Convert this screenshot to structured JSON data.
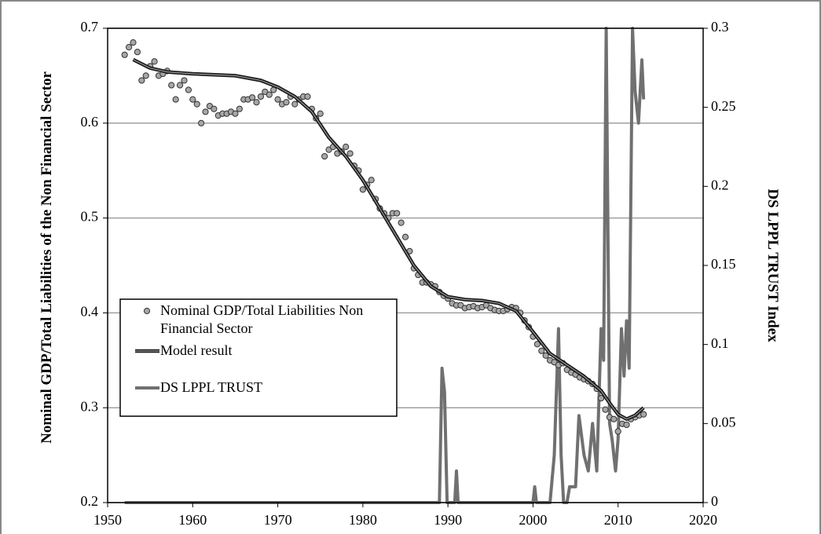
{
  "chart_data": {
    "type": "line",
    "xlim": [
      1950,
      2020
    ],
    "xticks": [
      1950,
      1960,
      1970,
      1980,
      1990,
      2000,
      2010,
      2020
    ],
    "ylim": [
      0.2,
      0.7
    ],
    "yticks": [
      0.2,
      0.3,
      0.4,
      0.5,
      0.6,
      0.7
    ],
    "y2lim": [
      0,
      0.3
    ],
    "y2ticks": [
      0,
      0.05,
      0.1,
      0.15,
      0.2,
      0.25,
      0.3
    ],
    "ylabel": "Nominal GDP/Total Liabilities of the Non Financial Sector",
    "y2label": "DS LPPL TRUST Index",
    "grid": true,
    "legend": "lower left",
    "series": [
      {
        "name": "Nominal GDP/Total Liabilities Non Financial Sector",
        "kind": "scatter",
        "color": "#a6a6a6",
        "x": [
          1952,
          1952.5,
          1953,
          1953.5,
          1954,
          1954.5,
          1955,
          1955.5,
          1956,
          1956.5,
          1957,
          1957.5,
          1958,
          1958.5,
          1959,
          1959.5,
          1960,
          1960.5,
          1961,
          1961.5,
          1962,
          1962.5,
          1963,
          1963.5,
          1964,
          1964.5,
          1965,
          1965.5,
          1966,
          1966.5,
          1967,
          1967.5,
          1968,
          1968.5,
          1969,
          1969.5,
          1970,
          1970.5,
          1971,
          1971.5,
          1972,
          1972.5,
          1973,
          1973.5,
          1974,
          1974.5,
          1975,
          1975.5,
          1976,
          1976.5,
          1977,
          1977.5,
          1978,
          1978.5,
          1979,
          1979.5,
          1980,
          1980.5,
          1981,
          1981.5,
          1982,
          1982.5,
          1983,
          1983.5,
          1984,
          1984.5,
          1985,
          1985.5,
          1986,
          1986.5,
          1987,
          1987.5,
          1988,
          1988.5,
          1989,
          1989.5,
          1990,
          1990.5,
          1991,
          1991.5,
          1992,
          1992.5,
          1993,
          1993.5,
          1994,
          1994.5,
          1995,
          1995.5,
          1996,
          1996.5,
          1997,
          1997.5,
          1998,
          1998.5,
          1999,
          1999.5,
          2000,
          2000.5,
          2001,
          2001.5,
          2002,
          2002.5,
          2003,
          2003.5,
          2004,
          2004.5,
          2005,
          2005.5,
          2006,
          2006.5,
          2007,
          2007.5,
          2008,
          2008.5,
          2009,
          2009.5,
          2010,
          2010.5,
          2011,
          2011.5,
          2012,
          2012.5,
          2013
        ],
        "values": [
          0.672,
          0.68,
          0.685,
          0.675,
          0.645,
          0.65,
          0.66,
          0.665,
          0.65,
          0.652,
          0.655,
          0.64,
          0.625,
          0.64,
          0.645,
          0.635,
          0.625,
          0.62,
          0.6,
          0.612,
          0.618,
          0.615,
          0.608,
          0.61,
          0.61,
          0.612,
          0.61,
          0.615,
          0.625,
          0.625,
          0.627,
          0.622,
          0.628,
          0.633,
          0.63,
          0.635,
          0.625,
          0.62,
          0.622,
          0.628,
          0.62,
          0.625,
          0.628,
          0.628,
          0.615,
          0.605,
          0.61,
          0.565,
          0.572,
          0.575,
          0.568,
          0.57,
          0.575,
          0.568,
          0.555,
          0.55,
          0.53,
          0.535,
          0.54,
          0.52,
          0.51,
          0.505,
          0.5,
          0.505,
          0.505,
          0.495,
          0.48,
          0.465,
          0.447,
          0.44,
          0.432,
          0.432,
          0.43,
          0.428,
          0.422,
          0.418,
          0.415,
          0.41,
          0.408,
          0.408,
          0.405,
          0.406,
          0.407,
          0.405,
          0.406,
          0.408,
          0.405,
          0.403,
          0.402,
          0.402,
          0.404,
          0.406,
          0.405,
          0.4,
          0.392,
          0.385,
          0.375,
          0.367,
          0.36,
          0.355,
          0.35,
          0.348,
          0.345,
          0.347,
          0.34,
          0.337,
          0.335,
          0.332,
          0.33,
          0.328,
          0.325,
          0.32,
          0.31,
          0.298,
          0.29,
          0.288,
          0.275,
          0.283,
          0.282,
          0.288,
          0.29,
          0.292,
          0.293
        ]
      },
      {
        "name": "Model result",
        "kind": "line",
        "color": "#1a1a1a",
        "x": [
          1953,
          1955,
          1957,
          1960,
          1965,
          1968,
          1970,
          1972,
          1974,
          1976,
          1978,
          1980,
          1982,
          1984,
          1986,
          1988,
          1990,
          1992,
          1994,
          1996,
          1998,
          2000,
          2002,
          2004,
          2006,
          2008,
          2009,
          2010,
          2011,
          2012,
          2013
        ],
        "values": [
          0.667,
          0.658,
          0.654,
          0.652,
          0.65,
          0.645,
          0.638,
          0.628,
          0.612,
          0.585,
          0.565,
          0.54,
          0.51,
          0.48,
          0.45,
          0.428,
          0.417,
          0.414,
          0.413,
          0.41,
          0.402,
          0.38,
          0.357,
          0.345,
          0.333,
          0.318,
          0.305,
          0.293,
          0.288,
          0.292,
          0.3
        ]
      },
      {
        "name": "DS LPPL TRUST",
        "kind": "line",
        "color": "#707070",
        "axis": "y2",
        "x": [
          1952,
          1989,
          1989.3,
          1989.6,
          1989.9,
          1990.8,
          1991,
          1991.2,
          2000,
          2000.2,
          2000.4,
          2002,
          2002.5,
          2003,
          2003.3,
          2003.6,
          2004,
          2004.3,
          2005,
          2005.4,
          2006,
          2006.5,
          2007,
          2007.5,
          2008,
          2008.3,
          2008.6,
          2009,
          2009.3,
          2009.7,
          2010,
          2010.4,
          2010.7,
          2011,
          2011.3,
          2011.7,
          2012,
          2012.4,
          2012.8,
          2013
        ],
        "values": [
          0,
          0,
          0.085,
          0.07,
          0,
          0,
          0.02,
          0,
          0,
          0.01,
          0,
          0,
          0.03,
          0.11,
          0.03,
          0,
          0,
          0.01,
          0.01,
          0.055,
          0.03,
          0.02,
          0.05,
          0.02,
          0.11,
          0.09,
          0.3,
          0.05,
          0.04,
          0.02,
          0.04,
          0.11,
          0.08,
          0.115,
          0.085,
          0.3,
          0.26,
          0.24,
          0.28,
          0.255
        ]
      }
    ]
  }
}
